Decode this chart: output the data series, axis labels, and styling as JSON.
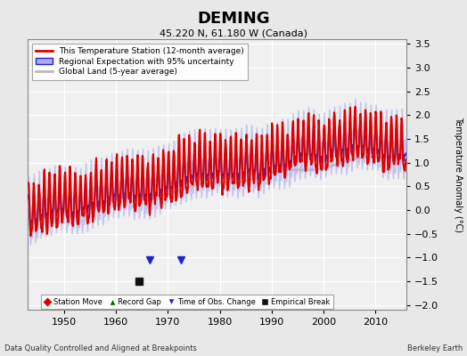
{
  "title": "DEMING",
  "subtitle": "45.220 N, 61.180 W (Canada)",
  "ylabel": "Temperature Anomaly (°C)",
  "footer_left": "Data Quality Controlled and Aligned at Breakpoints",
  "footer_right": "Berkeley Earth",
  "ylim": [
    -2.1,
    3.6
  ],
  "yticks": [
    -2,
    -1.5,
    -1,
    -0.5,
    0,
    0.5,
    1,
    1.5,
    2,
    2.5,
    3,
    3.5
  ],
  "xlim": [
    1943,
    2016
  ],
  "xticks": [
    1950,
    1960,
    1970,
    1980,
    1990,
    2000,
    2010
  ],
  "bg_color": "#e8e8e8",
  "plot_bg_color": "#f0f0f0",
  "station_line_color": "#dd0000",
  "regional_line_color": "#2222cc",
  "regional_fill_color": "#aaaaee",
  "global_line_color": "#bbbbbb",
  "legend_items": [
    {
      "label": "This Temperature Station (12-month average)",
      "color": "#dd0000",
      "lw": 2
    },
    {
      "label": "Regional Expectation with 95% uncertainty",
      "color": "#2222cc",
      "lw": 1.5
    },
    {
      "label": "Global Land (5-year average)",
      "color": "#bbbbbb",
      "lw": 2
    }
  ],
  "bottom_legend": [
    {
      "label": "Station Move",
      "marker": "D",
      "color": "#dd0000"
    },
    {
      "label": "Record Gap",
      "marker": "^",
      "color": "#006600"
    },
    {
      "label": "Time of Obs. Change",
      "marker": "v",
      "color": "#2222cc"
    },
    {
      "label": "Empirical Break",
      "marker": "s",
      "color": "#222222"
    }
  ],
  "empirical_break_x": 1964.5,
  "empirical_break_y": -1.5,
  "obs_change_x": 1966.5,
  "obs_change_y": -1.05,
  "obs_change2_x": 1972.5,
  "obs_change2_y": -1.05
}
